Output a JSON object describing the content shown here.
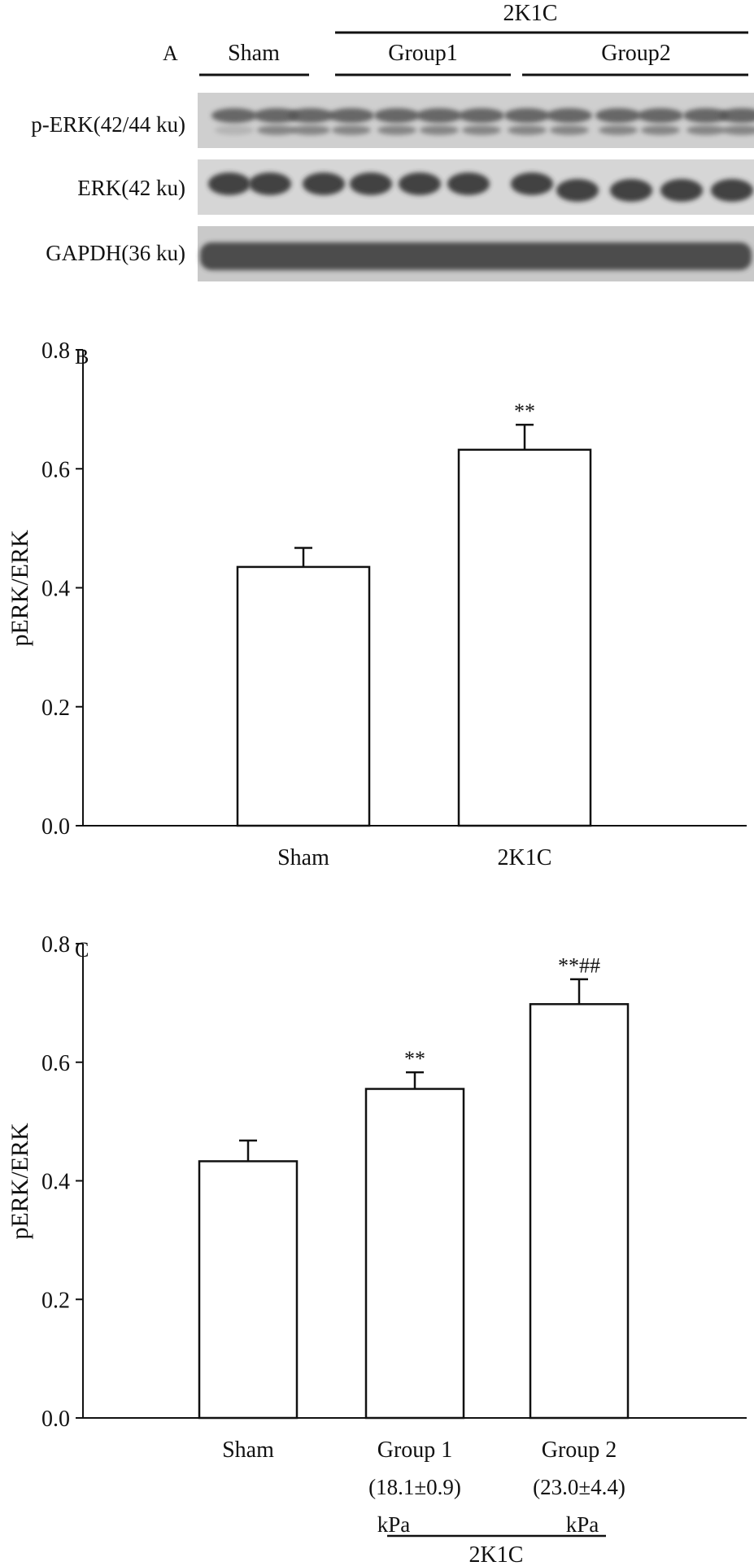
{
  "panel_a": {
    "label": "A",
    "group_header": "2K1C",
    "groups": [
      "Sham",
      "Group1",
      "Group2"
    ],
    "blots": [
      "p-ERK(42/44 ku)",
      "ERK(42 ku)",
      "GAPDH(36 ku)"
    ]
  },
  "chart_data": [
    {
      "type": "bar",
      "panel_label": "B",
      "ylabel": "pERK/ERK",
      "ylim": [
        0,
        0.8
      ],
      "yticks": [
        "0.0",
        "0.2",
        "0.4",
        "0.6",
        "0.8"
      ],
      "categories": [
        "Sham",
        "2K1C"
      ],
      "values": [
        0.435,
        0.632
      ],
      "errors": [
        0.032,
        0.042
      ],
      "annotations": [
        "",
        "**"
      ],
      "bar_fill": "#ffffff"
    },
    {
      "type": "bar",
      "panel_label": "C",
      "ylabel": "pERK/ERK",
      "ylim": [
        0,
        0.8
      ],
      "yticks": [
        "0.0",
        "0.2",
        "0.4",
        "0.6",
        "0.8"
      ],
      "categories": [
        "Sham",
        "Group 1",
        "Group 2"
      ],
      "category_sublabels": [
        "",
        "(18.1±0.9)",
        "(23.0±4.4)"
      ],
      "category_units": [
        "",
        "kPa",
        "kPa"
      ],
      "group_label": "2K1C",
      "values": [
        0.433,
        0.555,
        0.698
      ],
      "errors": [
        0.035,
        0.028,
        0.042
      ],
      "annotations": [
        "",
        "**",
        "**##"
      ],
      "bar_fill": "#ffffff"
    }
  ]
}
